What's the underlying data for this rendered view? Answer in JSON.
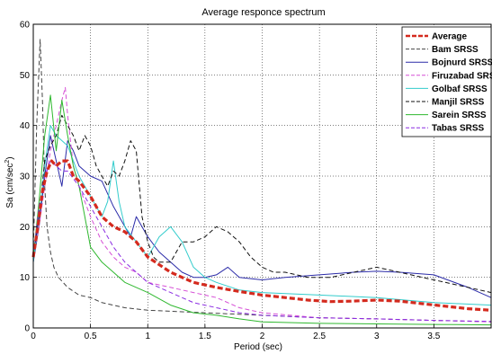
{
  "chart_data": {
    "type": "line",
    "title": "Average responce spectrum",
    "xlabel": "Period (sec)",
    "ylabel": "Sa (cm/sec²)",
    "ylabel_base": "Sa (cm/sec",
    "ylabel_sup": "2",
    "ylabel_close": ")",
    "xlim": [
      0,
      4
    ],
    "ylim": [
      0,
      60
    ],
    "xticks": [
      0,
      0.5,
      1,
      1.5,
      2,
      2.5,
      3,
      3.5
    ],
    "xtick_labels": [
      "0",
      "0.5",
      "1",
      "1.5",
      "2",
      "2.5",
      "3",
      "3.5"
    ],
    "yticks": [
      0,
      10,
      20,
      30,
      40,
      50,
      60
    ],
    "ytick_labels": [
      "0",
      "10",
      "20",
      "30",
      "40",
      "50",
      "60"
    ],
    "grid": true,
    "legend_position": "top-right",
    "series": [
      {
        "name": "Average",
        "color": "#d42a1e",
        "dash": "6,3",
        "width": 3.2,
        "x": [
          0,
          0.04,
          0.08,
          0.12,
          0.16,
          0.2,
          0.25,
          0.3,
          0.35,
          0.4,
          0.5,
          0.6,
          0.7,
          0.8,
          0.9,
          1.0,
          1.1,
          1.2,
          1.3,
          1.4,
          1.5,
          1.6,
          1.8,
          2.0,
          2.2,
          2.4,
          2.6,
          2.8,
          3.0,
          3.2,
          3.4,
          3.6,
          3.8,
          4.0
        ],
        "y": [
          14,
          20,
          27,
          31,
          33,
          32,
          33,
          33,
          30,
          29,
          26,
          22,
          20,
          19,
          17,
          14,
          12.5,
          11,
          10,
          9,
          8.5,
          8,
          7.2,
          6.5,
          6,
          5.5,
          5.2,
          5.3,
          5.5,
          5.3,
          4.8,
          4.3,
          3.8,
          3.5
        ]
      },
      {
        "name": "Bam SRSS",
        "color": "#444444",
        "dash": "5,3",
        "width": 1,
        "x": [
          0,
          0.03,
          0.06,
          0.08,
          0.1,
          0.12,
          0.15,
          0.18,
          0.22,
          0.3,
          0.4,
          0.5,
          0.6,
          0.8,
          1.0,
          1.5,
          2.0,
          2.5,
          3.0,
          3.5,
          4.0
        ],
        "y": [
          15,
          40,
          57,
          45,
          28,
          20,
          15,
          12,
          10,
          8,
          6.5,
          6,
          5,
          4,
          3.5,
          3,
          2.5,
          2,
          1.8,
          1.5,
          1.2
        ]
      },
      {
        "name": "Bojnurd SRSS",
        "color": "#2b2ba8",
        "dash": "",
        "width": 1,
        "x": [
          0,
          0.05,
          0.1,
          0.15,
          0.2,
          0.25,
          0.3,
          0.35,
          0.4,
          0.5,
          0.6,
          0.7,
          0.8,
          0.85,
          0.9,
          1.0,
          1.1,
          1.2,
          1.3,
          1.4,
          1.5,
          1.6,
          1.7,
          1.8,
          2.0,
          2.2,
          2.5,
          2.8,
          3.0,
          3.2,
          3.5,
          3.8,
          4.0
        ],
        "y": [
          13,
          20,
          30,
          38,
          33,
          28,
          37,
          35,
          32,
          30,
          29,
          24,
          20,
          18,
          22,
          18,
          15,
          13,
          11,
          10,
          10,
          10.5,
          12,
          10,
          9.5,
          10,
          10.5,
          11,
          11.2,
          11,
          10.5,
          8,
          6
        ]
      },
      {
        "name": "Firuzabad SRSS",
        "color": "#d64fd6",
        "dash": "5,3",
        "width": 1,
        "x": [
          0,
          0.05,
          0.1,
          0.15,
          0.2,
          0.25,
          0.28,
          0.3,
          0.35,
          0.4,
          0.5,
          0.6,
          0.7,
          0.8,
          0.9,
          1.0,
          1.2,
          1.4,
          1.6,
          1.8,
          2.0,
          2.5,
          3.0,
          3.5,
          4.0
        ],
        "y": [
          14,
          20,
          28,
          35,
          40,
          45,
          47.5,
          42,
          32,
          28,
          22,
          17,
          14,
          12,
          11,
          9,
          8,
          7,
          6,
          4,
          3,
          2,
          1.8,
          1.5,
          1.2
        ]
      },
      {
        "name": "Golbaf SRSS",
        "color": "#33cccc",
        "dash": "",
        "width": 1,
        "x": [
          0,
          0.05,
          0.1,
          0.15,
          0.2,
          0.3,
          0.4,
          0.5,
          0.6,
          0.65,
          0.7,
          0.75,
          0.8,
          0.9,
          1.0,
          1.1,
          1.2,
          1.3,
          1.4,
          1.5,
          1.6,
          1.8,
          2.0,
          2.5,
          3.0,
          3.5,
          4.0
        ],
        "y": [
          13,
          22,
          32,
          40,
          38,
          36,
          30,
          26,
          22,
          25,
          33,
          25,
          20,
          17,
          14,
          18,
          20,
          17,
          12,
          10,
          9,
          7.5,
          7,
          6.5,
          6,
          5,
          4.5
        ]
      },
      {
        "name": "Manjil SRSS",
        "color": "#111111",
        "dash": "5,3",
        "width": 1,
        "x": [
          0,
          0.05,
          0.1,
          0.15,
          0.2,
          0.25,
          0.3,
          0.35,
          0.4,
          0.45,
          0.5,
          0.55,
          0.6,
          0.65,
          0.7,
          0.75,
          0.8,
          0.85,
          0.9,
          0.95,
          1.0,
          1.05,
          1.1,
          1.2,
          1.3,
          1.4,
          1.5,
          1.6,
          1.7,
          1.8,
          1.9,
          2.0,
          2.1,
          2.2,
          2.4,
          2.6,
          2.8,
          3.0,
          3.2,
          3.4,
          3.6,
          3.8,
          4.0
        ],
        "y": [
          14,
          22,
          33,
          36,
          38,
          42,
          40,
          38,
          35,
          38,
          36,
          32,
          30,
          28,
          31,
          30,
          33,
          37,
          35,
          22,
          17,
          14,
          13,
          13,
          17,
          17,
          18,
          20,
          19,
          17,
          14,
          12,
          11,
          11,
          10,
          10,
          11,
          12,
          11,
          10,
          9,
          8,
          7
        ]
      },
      {
        "name": "Sarein SRSS",
        "color": "#2fb82f",
        "dash": "",
        "width": 1,
        "x": [
          0,
          0.05,
          0.1,
          0.15,
          0.2,
          0.25,
          0.3,
          0.35,
          0.4,
          0.45,
          0.5,
          0.6,
          0.7,
          0.8,
          0.9,
          1.0,
          1.2,
          1.4,
          1.6,
          1.8,
          2.0,
          2.5,
          3.0,
          3.5,
          4.0
        ],
        "y": [
          14,
          25,
          38,
          46,
          35,
          45,
          38,
          32,
          28,
          22,
          16,
          13,
          11,
          9,
          8,
          7,
          4.5,
          3,
          2.5,
          1.8,
          1.2,
          0.9,
          0.8,
          0.7,
          0.6
        ]
      },
      {
        "name": "Tabas SRSS",
        "color": "#8a2be2",
        "dash": "5,3",
        "width": 1,
        "x": [
          0,
          0.05,
          0.1,
          0.15,
          0.2,
          0.25,
          0.3,
          0.4,
          0.5,
          0.6,
          0.7,
          0.8,
          0.9,
          1.0,
          1.2,
          1.4,
          1.6,
          1.8,
          2.0,
          2.5,
          3.0,
          3.5,
          4.0
        ],
        "y": [
          14,
          24,
          30,
          33,
          32,
          31,
          31,
          28,
          24,
          20,
          16,
          13,
          11,
          9,
          7,
          5,
          4,
          3,
          2.5,
          2,
          1.8,
          1.5,
          1.3
        ]
      }
    ]
  }
}
